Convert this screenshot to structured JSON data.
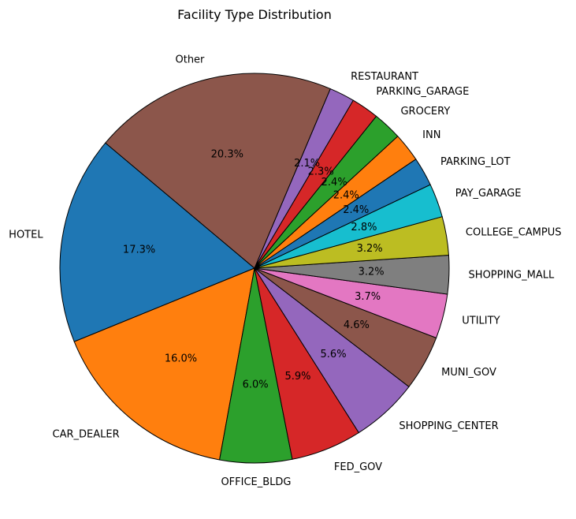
{
  "chart_data": {
    "type": "pie",
    "title": "Facility Type Distribution",
    "start_angle_deg": 140,
    "direction": "counterclockwise",
    "slices": [
      {
        "label": "HOTEL",
        "value": 17.3,
        "pct_label": "17.3%",
        "color": "#1f77b4"
      },
      {
        "label": "CAR_DEALER",
        "value": 16.0,
        "pct_label": "16.0%",
        "color": "#ff7f0e"
      },
      {
        "label": "OFFICE_BLDG",
        "value": 6.0,
        "pct_label": "6.0%",
        "color": "#2ca02c"
      },
      {
        "label": "FED_GOV",
        "value": 5.9,
        "pct_label": "5.9%",
        "color": "#d62728"
      },
      {
        "label": "SHOPPING_CENTER",
        "value": 5.6,
        "pct_label": "5.6%",
        "color": "#9467bd"
      },
      {
        "label": "MUNI_GOV",
        "value": 4.6,
        "pct_label": "4.6%",
        "color": "#8c564b"
      },
      {
        "label": "UTILITY",
        "value": 3.7,
        "pct_label": "3.7%",
        "color": "#e377c2"
      },
      {
        "label": "SHOPPING_MALL",
        "value": 3.2,
        "pct_label": "3.2%",
        "color": "#7f7f7f"
      },
      {
        "label": "COLLEGE_CAMPUS",
        "value": 3.2,
        "pct_label": "3.2%",
        "color": "#bcbd22"
      },
      {
        "label": "PAY_GARAGE",
        "value": 2.8,
        "pct_label": "2.8%",
        "color": "#17becf"
      },
      {
        "label": "PARKING_LOT",
        "value": 2.4,
        "pct_label": "2.4%",
        "color": "#1f77b4"
      },
      {
        "label": "INN",
        "value": 2.4,
        "pct_label": "2.4%",
        "color": "#ff7f0e"
      },
      {
        "label": "GROCERY",
        "value": 2.4,
        "pct_label": "2.4%",
        "color": "#2ca02c"
      },
      {
        "label": "PARKING_GARAGE",
        "value": 2.3,
        "pct_label": "2.3%",
        "color": "#d62728"
      },
      {
        "label": "RESTAURANT",
        "value": 2.1,
        "pct_label": "2.1%",
        "color": "#9467bd"
      },
      {
        "label": "Other",
        "value": 20.3,
        "pct_label": "20.3%",
        "color": "#8c564b"
      }
    ]
  }
}
